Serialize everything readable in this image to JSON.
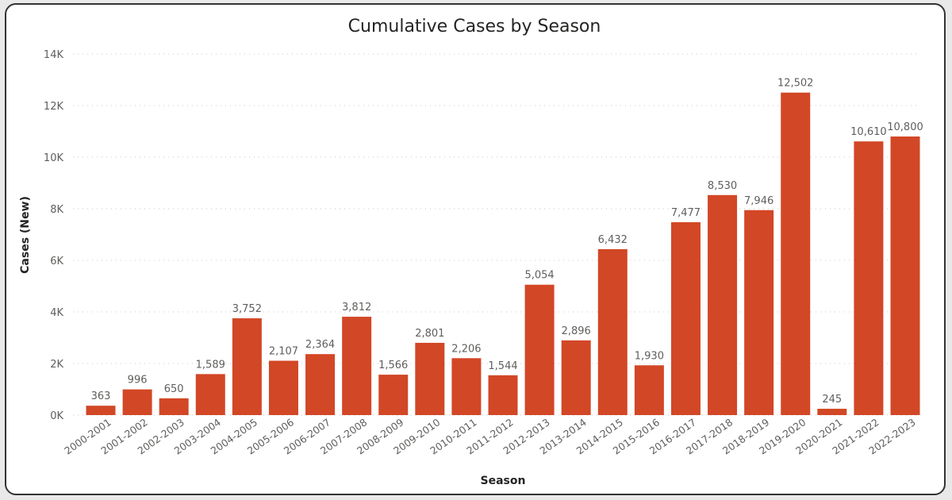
{
  "chart_data": {
    "type": "bar",
    "title": "Cumulative Cases by Season",
    "xlabel": "Season",
    "ylabel": "Cases (New)",
    "ylim": [
      0,
      14000
    ],
    "yticks": [
      "0K",
      "2K",
      "4K",
      "6K",
      "8K",
      "10K",
      "12K",
      "14K"
    ],
    "grid": true,
    "bar_color": "#D24726",
    "categories": [
      "2000-2001",
      "2001-2002",
      "2002-2003",
      "2003-2004",
      "2004-2005",
      "2005-2006",
      "2006-2007",
      "2007-2008",
      "2008-2009",
      "2009-2010",
      "2010-2011",
      "2011-2012",
      "2012-2013",
      "2013-2014",
      "2014-2015",
      "2015-2016",
      "2016-2017",
      "2017-2018",
      "2018-2019",
      "2019-2020",
      "2020-2021",
      "2021-2022",
      "2022-2023"
    ],
    "values": [
      363,
      996,
      650,
      1589,
      3752,
      2107,
      2364,
      3812,
      1566,
      2801,
      2206,
      1544,
      5054,
      2896,
      6432,
      1930,
      7477,
      8530,
      7946,
      12502,
      245,
      10610,
      10800
    ],
    "data_labels": [
      "363",
      "996",
      "650",
      "1,589",
      "3,752",
      "2,107",
      "2,364",
      "3,812",
      "1,566",
      "2,801",
      "2,206",
      "1,544",
      "5,054",
      "2,896",
      "6,432",
      "1,930",
      "7,477",
      "8,530",
      "7,946",
      "12,502",
      "245",
      "10,610",
      "10,800"
    ]
  }
}
